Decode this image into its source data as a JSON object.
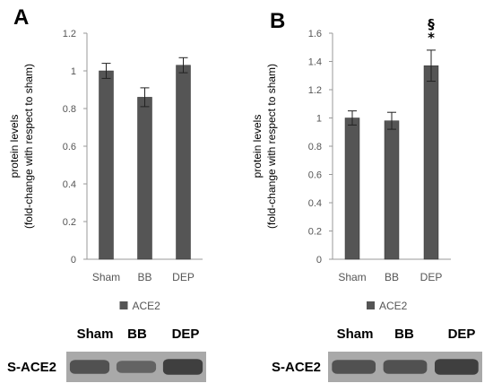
{
  "colors": {
    "bar": "#555555",
    "axis": "#999999",
    "text": "#555555",
    "blot_bg": "#a9a9a9",
    "blot_band": "#3c3c3c"
  },
  "chart_data": [
    {
      "panel": "A",
      "type": "bar",
      "categories": [
        "Sham",
        "BB",
        "DEP"
      ],
      "values": [
        1.0,
        0.86,
        1.03
      ],
      "errors": [
        0.04,
        0.05,
        0.04
      ],
      "ylabel_lines": [
        "protein levels",
        "(fold-change with respect to sham)"
      ],
      "ylim": [
        0,
        1.2
      ],
      "yticks": [
        0,
        0.2,
        0.4,
        0.6,
        0.8,
        1,
        1.2
      ],
      "ytick_labels": [
        "0",
        "0.2",
        "0.4",
        "0.6",
        "0.8",
        "1",
        "1.2"
      ],
      "legend": [
        "ACE2"
      ],
      "legend_placement": "bottom",
      "annotations": [],
      "grid": false
    },
    {
      "panel": "B",
      "type": "bar",
      "categories": [
        "Sham",
        "BB",
        "DEP"
      ],
      "values": [
        1.0,
        0.98,
        1.37
      ],
      "errors": [
        0.05,
        0.06,
        0.11
      ],
      "ylabel_lines": [
        "protein levels",
        "(fold-change with respect to sham)"
      ],
      "ylim": [
        0,
        1.6
      ],
      "yticks": [
        0,
        0.2,
        0.4,
        0.6,
        0.8,
        1,
        1.2,
        1.4,
        1.6
      ],
      "ytick_labels": [
        "0",
        "0.2",
        "0.4",
        "0.6",
        "0.8",
        "1",
        "1.2",
        "1.4",
        "1.6"
      ],
      "legend": [
        "ACE2"
      ],
      "legend_placement": "bottom",
      "annotations": [
        {
          "category": "DEP",
          "marks": [
            "§",
            "*"
          ]
        }
      ],
      "grid": false
    }
  ],
  "blots": [
    {
      "headers": [
        "Sham",
        "BB",
        "DEP"
      ],
      "row_label": "S-ACE2",
      "band_intensities": [
        0.7,
        0.45,
        0.95
      ]
    },
    {
      "headers": [
        "Sham",
        "BB",
        "DEP"
      ],
      "row_label": "S-ACE2",
      "band_intensities": [
        0.7,
        0.7,
        0.95
      ]
    }
  ]
}
